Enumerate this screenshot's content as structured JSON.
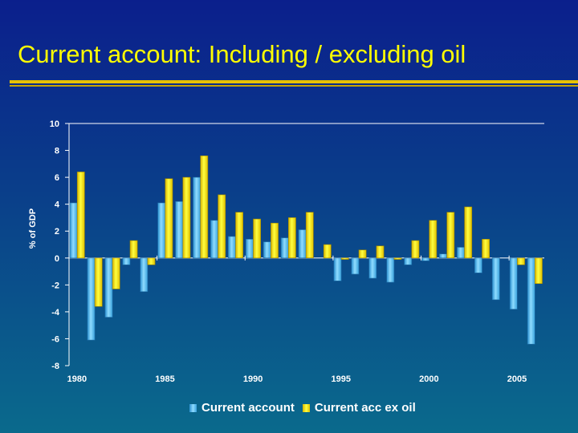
{
  "title": "Current account: Including / excluding oil",
  "colors": {
    "series1": "#5fc3ef",
    "series2": "#f5d800",
    "rule": "#e8c200"
  },
  "chart_data": {
    "type": "bar",
    "ylabel": "% of GDP",
    "ylim": [
      -8,
      10
    ],
    "yticks": [
      10,
      8,
      6,
      4,
      2,
      0,
      -2,
      -4,
      -6,
      -8
    ],
    "x": [
      1980,
      1981,
      1982,
      1983,
      1984,
      1985,
      1986,
      1987,
      1988,
      1989,
      1990,
      1991,
      1992,
      1993,
      1994,
      1995,
      1996,
      1997,
      1998,
      1999,
      2000,
      2001,
      2002,
      2003,
      2004,
      2005,
      2006
    ],
    "xtick_labels": [
      "1980",
      "1985",
      "1990",
      "1995",
      "2000",
      "2005"
    ],
    "series": [
      {
        "name": "Current account",
        "values": [
          4.1,
          -6.1,
          -4.4,
          -0.5,
          -2.5,
          4.1,
          4.2,
          6.0,
          2.8,
          1.6,
          1.4,
          1.2,
          1.5,
          2.1,
          0.0,
          -1.7,
          -1.2,
          -1.5,
          -1.8,
          -0.5,
          -0.2,
          0.3,
          0.8,
          -1.1,
          -3.1,
          -3.8,
          -6.4
        ]
      },
      {
        "name": "Current acc ex oil",
        "values": [
          6.4,
          -3.6,
          -2.3,
          1.3,
          -0.5,
          5.9,
          6.0,
          7.6,
          4.7,
          3.4,
          2.9,
          2.6,
          3.0,
          3.4,
          1.0,
          -0.1,
          0.6,
          0.9,
          -0.1,
          1.3,
          2.8,
          3.4,
          3.8,
          1.4,
          0.0,
          -0.5,
          -1.9
        ]
      }
    ],
    "grid": false,
    "legend_position": "bottom"
  }
}
